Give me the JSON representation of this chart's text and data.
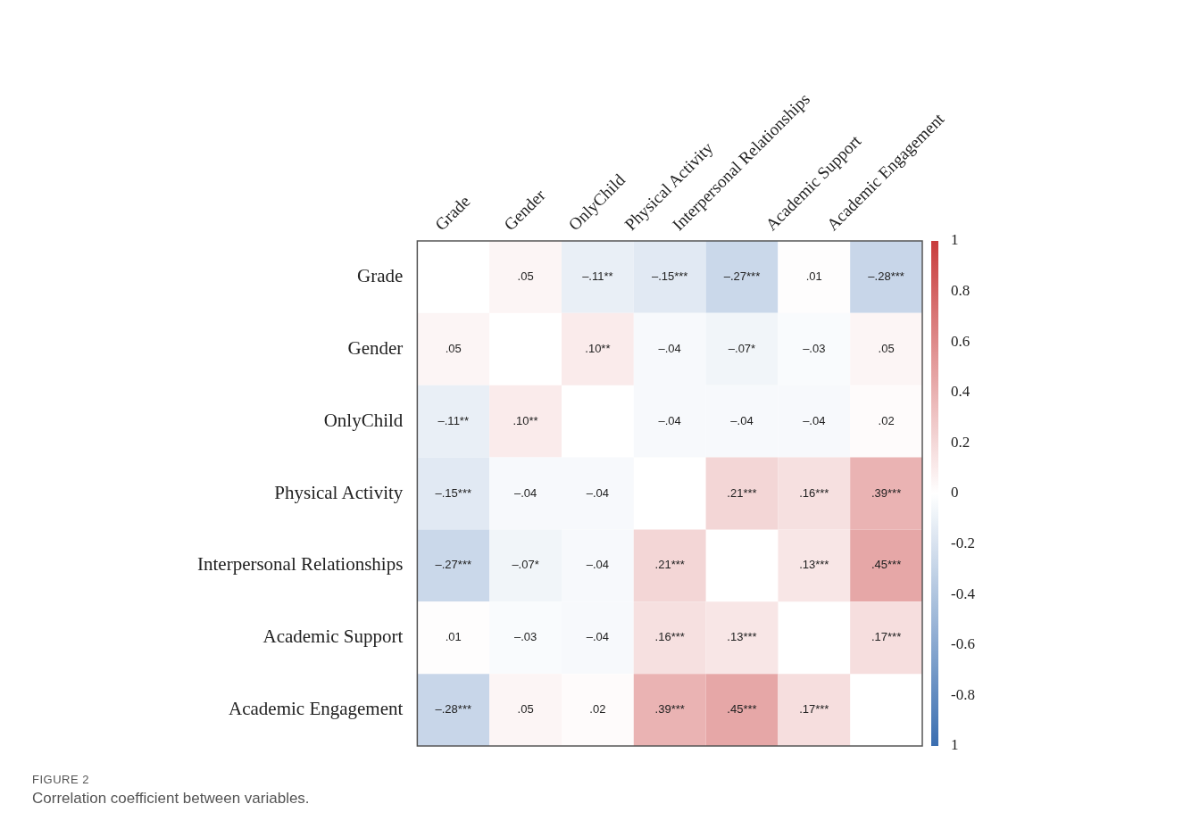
{
  "chart_data": {
    "type": "heatmap",
    "categories": [
      "Grade",
      "Gender",
      "OnlyChild",
      "Physical Activity",
      "Interpersonal Relationships",
      "Academic Support",
      "Academic Engagement"
    ],
    "y_categories": [
      "Grade",
      "Gender",
      "OnlyChild",
      "Physical Activity",
      "Interpersonal Relationships",
      "Academic Support",
      "Academic Engagement"
    ],
    "cells": [
      [
        null,
        0.05,
        -0.11,
        -0.15,
        -0.27,
        0.01,
        -0.28
      ],
      [
        0.05,
        null,
        0.1,
        -0.04,
        -0.07,
        -0.03,
        0.05
      ],
      [
        -0.11,
        0.1,
        null,
        -0.04,
        -0.04,
        -0.04,
        0.02
      ],
      [
        -0.15,
        -0.04,
        -0.04,
        null,
        0.21,
        0.16,
        0.39
      ],
      [
        -0.27,
        -0.07,
        -0.04,
        0.21,
        null,
        0.13,
        0.45
      ],
      [
        0.01,
        -0.03,
        -0.04,
        0.16,
        0.13,
        null,
        0.17
      ],
      [
        -0.28,
        0.05,
        0.02,
        0.39,
        0.45,
        0.17,
        null
      ]
    ],
    "cell_labels": [
      [
        null,
        ".05",
        "–.11**",
        "–.15***",
        "–.27***",
        ".01",
        "–.28***"
      ],
      [
        ".05",
        null,
        ".10**",
        "–.04",
        "–.07*",
        "–.03",
        ".05"
      ],
      [
        "–.11**",
        ".10**",
        null,
        "–.04",
        "–.04",
        "–.04",
        ".02"
      ],
      [
        "–.15***",
        "–.04",
        "–.04",
        null,
        ".21***",
        ".16***",
        ".39***"
      ],
      [
        "–.27***",
        "–.07*",
        "–.04",
        ".21***",
        null,
        ".13***",
        ".45***"
      ],
      [
        ".01",
        "–.03",
        "–.04",
        ".16***",
        ".13***",
        null,
        ".17***"
      ],
      [
        "–.28***",
        ".05",
        ".02",
        ".39***",
        ".45***",
        ".17***",
        null
      ]
    ],
    "clim": [
      -1,
      1
    ],
    "cticks": [
      {
        "value": -1,
        "label": "1"
      },
      -0.8,
      -0.6,
      -0.4,
      -0.2,
      0,
      0.2,
      0.4,
      0.6,
      0.8,
      1
    ],
    "annotations": [
      "FIGURE 2",
      "Correlation coefficient between variables."
    ]
  }
}
